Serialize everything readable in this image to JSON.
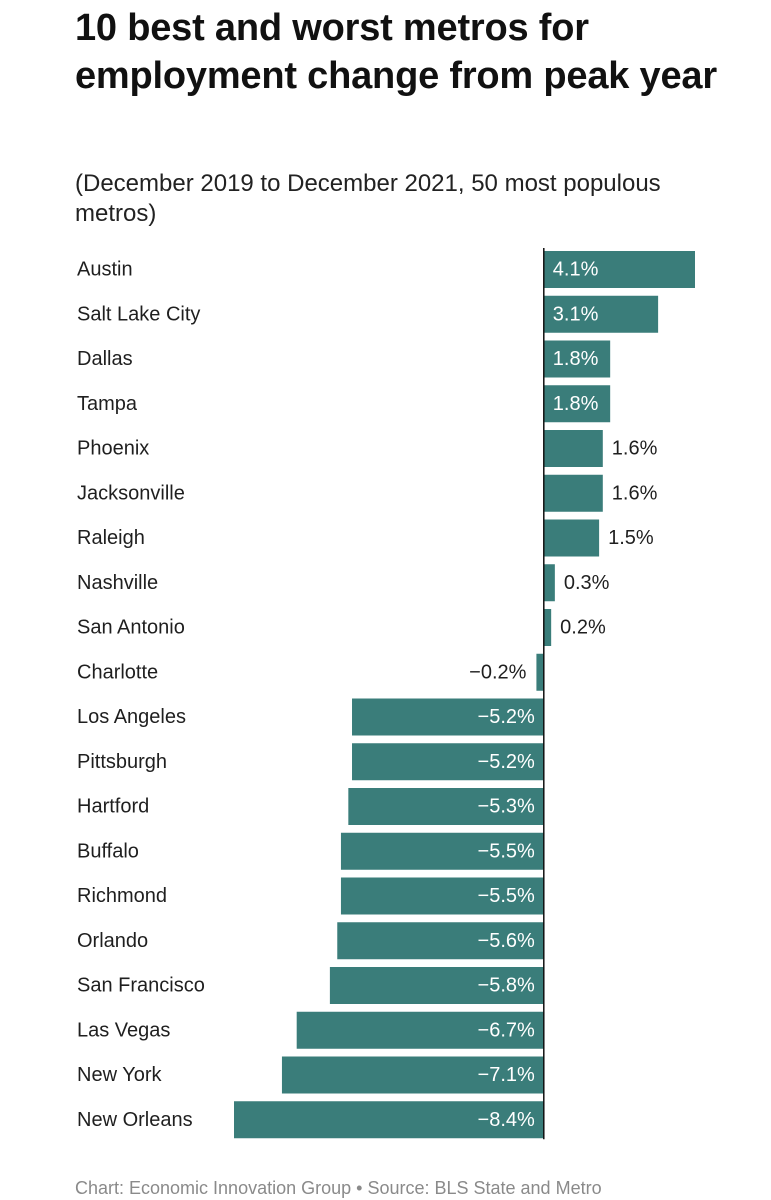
{
  "chart_data": {
    "type": "bar",
    "orientation": "horizontal",
    "title": "10 best and worst metros for employment change from peak year",
    "subtitle": "(December 2019 to December 2021, 50 most populous metros)",
    "categories": [
      "Austin",
      "Salt Lake City",
      "Dallas",
      "Tampa",
      "Phoenix",
      "Jacksonville",
      "Raleigh",
      "Nashville",
      "San Antonio",
      "Charlotte",
      "Los Angeles",
      "Pittsburgh",
      "Hartford",
      "Buffalo",
      "Richmond",
      "Orlando",
      "San Francisco",
      "Las Vegas",
      "New York",
      "New Orleans"
    ],
    "values": [
      4.1,
      3.1,
      1.8,
      1.8,
      1.6,
      1.6,
      1.5,
      0.3,
      0.2,
      -0.2,
      -5.2,
      -5.2,
      -5.3,
      -5.5,
      -5.5,
      -5.6,
      -5.8,
      -6.7,
      -7.1,
      -8.4
    ],
    "value_labels": [
      "4.1%",
      "3.1%",
      "1.8%",
      "1.8%",
      "1.6%",
      "1.6%",
      "1.5%",
      "0.3%",
      "0.2%",
      "−0.2%",
      "−5.2%",
      "−5.2%",
      "−5.3%",
      "−5.5%",
      "−5.5%",
      "−5.6%",
      "−5.8%",
      "−6.7%",
      "−7.1%",
      "−8.4%"
    ],
    "xlim": [
      -8.4,
      4.1
    ],
    "unit": "%",
    "bar_color": "#3a7d7a",
    "baseline_color": "#111111",
    "footer": "Chart: Economic Innovation Group • Source: BLS State and Metro"
  }
}
